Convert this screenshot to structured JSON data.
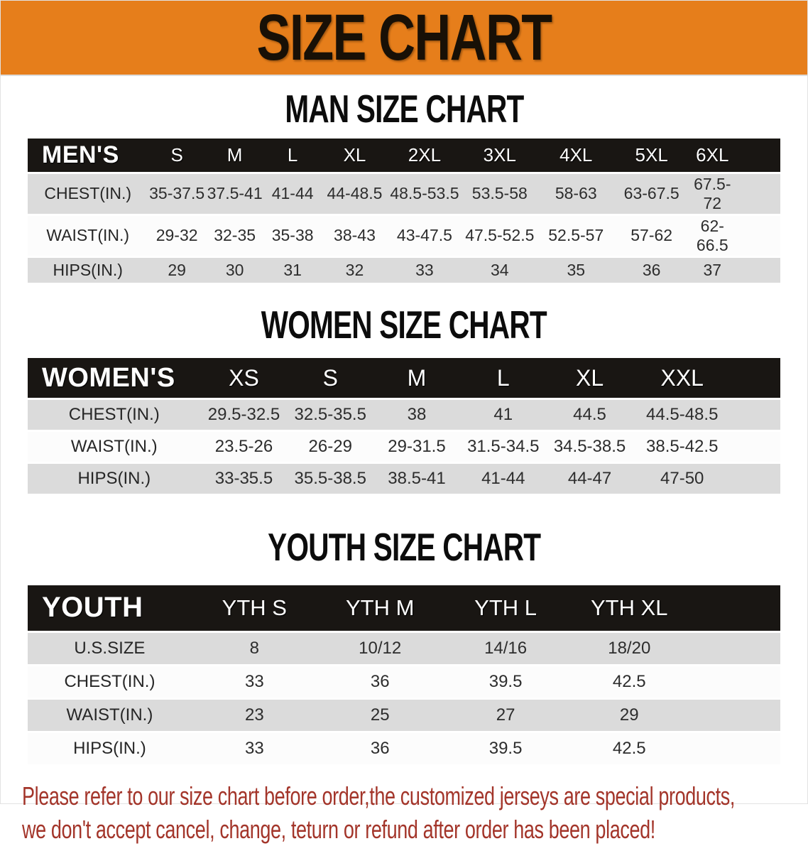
{
  "banner": {
    "title": "SIZE CHART"
  },
  "colors": {
    "banner-bg": "#E67E1B",
    "banner-text": "#181006",
    "header-bar": "#191613",
    "row-gray": "#DBDBDB",
    "disclaimer-red": "#A3352A"
  },
  "sections": [
    {
      "id": "men",
      "title": "MAN SIZE CHART",
      "table": {
        "corner_label": "MEN'S",
        "columns": [
          "S",
          "M",
          "L",
          "XL",
          "2XL",
          "3XL",
          "4XL",
          "5XL",
          "6XL"
        ],
        "rows": [
          {
            "label": "CHEST(IN.)",
            "values": [
              "35-37.5",
              "37.5-41",
              "41-44",
              "44-48.5",
              "48.5-53.5",
              "53.5-58",
              "58-63",
              "63-67.5",
              "67.5-72"
            ]
          },
          {
            "label": "WAIST(IN.)",
            "values": [
              "29-32",
              "32-35",
              "35-38",
              "38-43",
              "43-47.5",
              "47.5-52.5",
              "52.5-57",
              "57-62",
              "62-66.5"
            ]
          },
          {
            "label": "HIPS(IN.)",
            "values": [
              "29",
              "30",
              "31",
              "32",
              "33",
              "34",
              "35",
              "36",
              "37"
            ]
          }
        ]
      }
    },
    {
      "id": "women",
      "title": "WOMEN SIZE CHART",
      "table": {
        "corner_label": "WOMEN'S",
        "columns": [
          "XS",
          "S",
          "M",
          "L",
          "XL",
          "XXL"
        ],
        "rows": [
          {
            "label": "CHEST(IN.)",
            "values": [
              "29.5-32.5",
              "32.5-35.5",
              "38",
              "41",
              "44.5",
              "44.5-48.5"
            ]
          },
          {
            "label": "WAIST(IN.)",
            "values": [
              "23.5-26",
              "26-29",
              "29-31.5",
              "31.5-34.5",
              "34.5-38.5",
              "38.5-42.5"
            ]
          },
          {
            "label": "HIPS(IN.)",
            "values": [
              "33-35.5",
              "35.5-38.5",
              "38.5-41",
              "41-44",
              "44-47",
              "47-50"
            ]
          }
        ]
      }
    },
    {
      "id": "youth",
      "title": "YOUTH SIZE CHART",
      "table": {
        "corner_label": "YOUTH",
        "columns": [
          "YTH S",
          "YTH M",
          "YTH L",
          "YTH XL"
        ],
        "rows": [
          {
            "label": "U.S.SIZE",
            "values": [
              "8",
              "10/12",
              "14/16",
              "18/20"
            ]
          },
          {
            "label": "CHEST(IN.)",
            "values": [
              "33",
              "36",
              "39.5",
              "42.5"
            ]
          },
          {
            "label": "WAIST(IN.)",
            "values": [
              "23",
              "25",
              "27",
              "29"
            ]
          },
          {
            "label": "HIPS(IN.)",
            "values": [
              "33",
              "36",
              "39.5",
              "42.5"
            ]
          }
        ]
      }
    }
  ],
  "disclaimer": {
    "line1": "Please refer to our size chart before order,the customized jerseys are special products,",
    "line2": "we don't accept cancel, change, teturn or refund after order has been placed!"
  }
}
